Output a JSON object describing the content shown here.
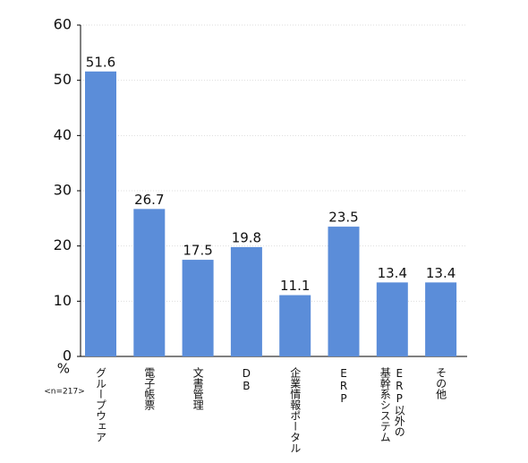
{
  "chart_data": {
    "type": "bar",
    "y_label": "%",
    "note": "<n=217>",
    "categories": [
      "グループウェア",
      "電子帳票",
      "文書管理",
      "DB",
      "企業情報ポータル",
      "ERP",
      "ERP以外の\n基幹系システム",
      "その他"
    ],
    "values": [
      51.6,
      26.7,
      17.5,
      19.8,
      11.1,
      23.5,
      13.4,
      13.4
    ],
    "color": "#5b8dd9",
    "ylim": [
      0,
      60
    ],
    "yticks": [
      0,
      10,
      20,
      30,
      40,
      50,
      60
    ],
    "grid": true
  }
}
